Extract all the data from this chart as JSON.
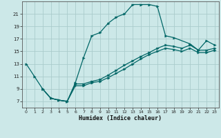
{
  "xlabel": "Humidex (Indice chaleur)",
  "bg_color": "#cce8e8",
  "line_color": "#006666",
  "grid_color": "#aacccc",
  "xlim": [
    -0.5,
    23.5
  ],
  "ylim": [
    6,
    23
  ],
  "xticks": [
    0,
    1,
    2,
    3,
    4,
    5,
    6,
    7,
    8,
    9,
    10,
    11,
    12,
    13,
    14,
    15,
    16,
    17,
    18,
    19,
    20,
    21,
    22,
    23
  ],
  "yticks": [
    7,
    9,
    11,
    13,
    15,
    17,
    19,
    21
  ],
  "line1_x": [
    0,
    1,
    2,
    3,
    4,
    5,
    6,
    7,
    8,
    9,
    10,
    11,
    12,
    13,
    14,
    15,
    16,
    17,
    18,
    20,
    21,
    22,
    23
  ],
  "line1_y": [
    13,
    11,
    9,
    7.5,
    7.2,
    7.0,
    10.0,
    14.0,
    17.5,
    18.0,
    19.5,
    20.5,
    21.0,
    22.5,
    22.5,
    22.5,
    22.2,
    17.5,
    17.2,
    16.2,
    15.2,
    16.7,
    16.0
  ],
  "line2_x": [
    2,
    3,
    4,
    5,
    6,
    7,
    8,
    9,
    10,
    11,
    12,
    13,
    14,
    15,
    16,
    17,
    18,
    19,
    20,
    21,
    22,
    23
  ],
  "line2_y": [
    9.0,
    7.5,
    7.2,
    7.0,
    9.8,
    9.8,
    10.2,
    10.5,
    11.2,
    12.0,
    12.8,
    13.5,
    14.2,
    14.8,
    15.5,
    16.0,
    15.8,
    15.5,
    16.0,
    15.2,
    15.2,
    15.5
  ],
  "line3_x": [
    2,
    3,
    4,
    5,
    6,
    7,
    8,
    9,
    10,
    11,
    12,
    13,
    14,
    15,
    16,
    17,
    18,
    19,
    20,
    21,
    22,
    23
  ],
  "line3_y": [
    9.0,
    7.5,
    7.2,
    7.0,
    9.5,
    9.5,
    10.0,
    10.2,
    10.8,
    11.5,
    12.2,
    13.0,
    13.8,
    14.5,
    15.0,
    15.5,
    15.3,
    15.0,
    15.5,
    14.8,
    14.8,
    15.2
  ]
}
